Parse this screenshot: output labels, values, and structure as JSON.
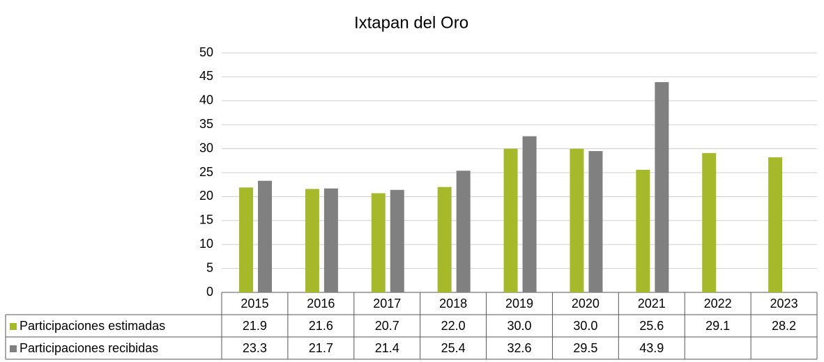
{
  "chart_data": {
    "type": "bar",
    "title": "Ixtapan  del Oro",
    "categories": [
      "2015",
      "2016",
      "2017",
      "2018",
      "2019",
      "2020",
      "2021",
      "2022",
      "2023"
    ],
    "series": [
      {
        "name": "Participaciones estimadas",
        "color": "#a5b92b",
        "values": [
          21.9,
          21.6,
          20.7,
          22.0,
          30.0,
          30.0,
          25.6,
          29.1,
          28.2
        ],
        "value_labels": [
          "21.9",
          "21.6",
          "20.7",
          "22.0",
          "30.0",
          "30.0",
          "25.6",
          "29.1",
          "28.2"
        ]
      },
      {
        "name": "Participaciones recibidas",
        "color": "#808080",
        "values": [
          23.3,
          21.7,
          21.4,
          25.4,
          32.6,
          29.5,
          43.9,
          null,
          null
        ],
        "value_labels": [
          "23.3",
          "21.7",
          "21.4",
          "25.4",
          "32.6",
          "29.5",
          "43.9",
          null,
          null
        ]
      }
    ],
    "ylim": [
      0,
      50
    ],
    "yticks": [
      0,
      5,
      10,
      15,
      20,
      25,
      30,
      35,
      40,
      45,
      50
    ],
    "grid": true
  }
}
